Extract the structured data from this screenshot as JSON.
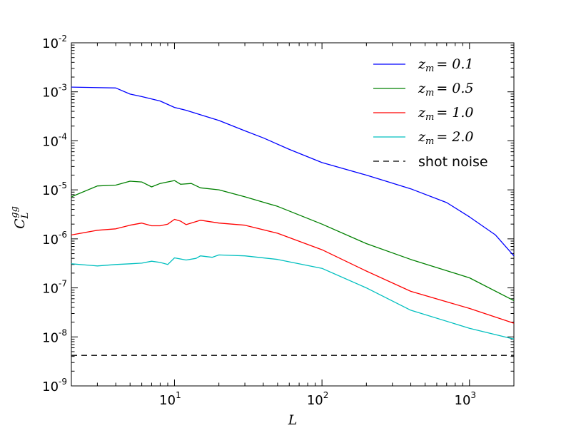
{
  "chart_data": {
    "type": "line",
    "xscale": "log",
    "yscale": "log",
    "xlim": [
      2,
      2000
    ],
    "ylim": [
      1e-09,
      0.01
    ],
    "xlabel": "L",
    "ylabel": "C_L^{gg}",
    "x_ticks": [
      {
        "base": "10",
        "exp": "1",
        "value": 10
      },
      {
        "base": "10",
        "exp": "2",
        "value": 100
      },
      {
        "base": "10",
        "exp": "3",
        "value": 1000
      }
    ],
    "y_ticks": [
      {
        "base": "10",
        "exp": "-9",
        "value": 1e-09
      },
      {
        "base": "10",
        "exp": "-8",
        "value": 1e-08
      },
      {
        "base": "10",
        "exp": "-7",
        "value": 1e-07
      },
      {
        "base": "10",
        "exp": "-6",
        "value": 1e-06
      },
      {
        "base": "10",
        "exp": "-5",
        "value": 1e-05
      },
      {
        "base": "10",
        "exp": "-4",
        "value": 0.0001
      },
      {
        "base": "10",
        "exp": "-3",
        "value": 0.001
      },
      {
        "base": "10",
        "exp": "-2",
        "value": 0.01
      }
    ],
    "legend_position": "top-right",
    "series": [
      {
        "name": "z_m = 0.1",
        "legend_var": "z",
        "legend_sub": "m",
        "legend_value": "= 0.1",
        "color": "#0000ff",
        "dash": "",
        "x": [
          2,
          4,
          5,
          6,
          8,
          10,
          12,
          15,
          20,
          30,
          40,
          60,
          100,
          200,
          400,
          700,
          1000,
          1500,
          2000
        ],
        "y": [
          0.00125,
          0.0012,
          0.0009,
          0.0008,
          0.00065,
          0.00048,
          0.00042,
          0.00034,
          0.00026,
          0.00016,
          0.000115,
          6.7e-05,
          3.6e-05,
          2e-05,
          1.05e-05,
          5.5e-06,
          2.8e-06,
          1.2e-06,
          4.5e-07
        ]
      },
      {
        "name": "z_m = 0.5",
        "legend_var": "z",
        "legend_sub": "m",
        "legend_value": "= 0.5",
        "color": "#008000",
        "dash": "",
        "x": [
          2,
          3,
          4,
          5,
          6,
          7,
          8,
          10,
          11,
          13,
          15,
          20,
          30,
          50,
          100,
          200,
          400,
          1000,
          2000
        ],
        "y": [
          7.2e-06,
          1.2e-05,
          1.25e-05,
          1.5e-05,
          1.45e-05,
          1.15e-05,
          1.35e-05,
          1.55e-05,
          1.3e-05,
          1.35e-05,
          1.1e-05,
          1e-05,
          7.2e-06,
          4.6e-06,
          2e-06,
          8e-07,
          3.8e-07,
          1.6e-07,
          5.5e-08
        ]
      },
      {
        "name": "z_m = 1.0",
        "legend_var": "z",
        "legend_sub": "m",
        "legend_value": "= 1.0",
        "color": "#ff0000",
        "dash": "",
        "x": [
          2,
          3,
          4,
          5,
          6,
          7,
          8,
          9,
          10,
          11,
          12,
          15,
          20,
          30,
          50,
          100,
          200,
          400,
          1000,
          2000
        ],
        "y": [
          1.2e-06,
          1.5e-06,
          1.6e-06,
          1.9e-06,
          2.1e-06,
          1.85e-06,
          1.85e-06,
          2e-06,
          2.5e-06,
          2.3e-06,
          1.95e-06,
          2.4e-06,
          2.1e-06,
          1.9e-06,
          1.3e-06,
          6e-07,
          2.2e-07,
          8.5e-08,
          3.8e-08,
          1.9e-08
        ]
      },
      {
        "name": "z_m = 2.0",
        "legend_var": "z",
        "legend_sub": "m",
        "legend_value": "= 2.0",
        "color": "#00bfbf",
        "dash": "",
        "x": [
          2,
          3,
          4,
          5,
          6,
          7,
          8,
          9,
          10,
          12,
          14,
          15,
          18,
          20,
          30,
          50,
          100,
          200,
          400,
          1000,
          2000
        ],
        "y": [
          3.1e-07,
          2.8e-07,
          3e-07,
          3.1e-07,
          3.2e-07,
          3.5e-07,
          3.3e-07,
          3e-07,
          4.1e-07,
          3.7e-07,
          4e-07,
          4.5e-07,
          4.2e-07,
          4.7e-07,
          4.5e-07,
          3.8e-07,
          2.5e-07,
          1e-07,
          3.5e-08,
          1.5e-08,
          9e-09
        ]
      },
      {
        "name": "shot noise",
        "legend_text": "shot noise",
        "color": "#000000",
        "dash": "8,6",
        "x": [
          2,
          2000
        ],
        "y": [
          4.2e-09,
          4.2e-09
        ]
      }
    ]
  }
}
